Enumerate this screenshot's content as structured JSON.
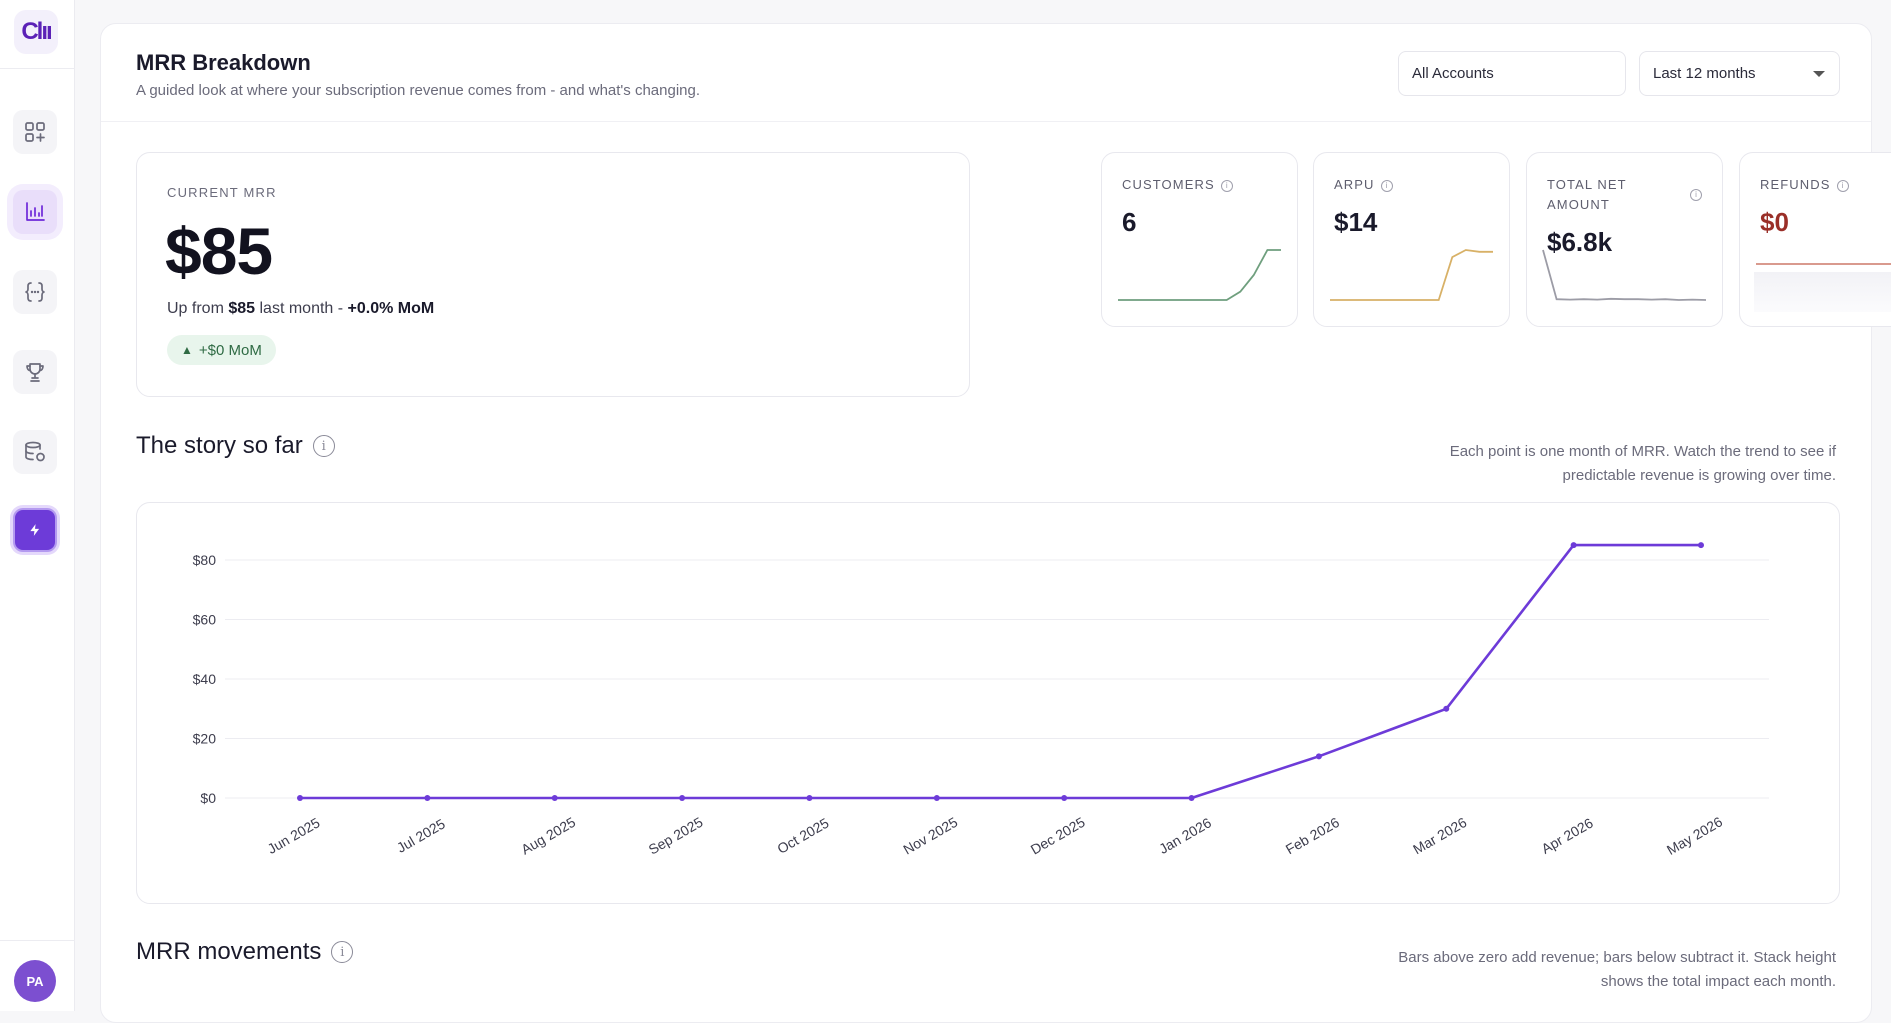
{
  "sidebar": {
    "logo_text": "Clıı",
    "avatar_initials": "PA",
    "items": [
      {
        "icon": "apps-add-icon"
      },
      {
        "icon": "bar-chart-icon"
      },
      {
        "icon": "braces-icon"
      },
      {
        "icon": "trophy-icon"
      },
      {
        "icon": "database-sync-icon"
      },
      {
        "icon": "bolt-icon"
      }
    ]
  },
  "header": {
    "title": "MRR Breakdown",
    "subtitle": "A guided look at where your subscription revenue comes from - and what's changing.",
    "account_filter": "All Accounts",
    "period_filter": "Last 12 months"
  },
  "mrr": {
    "label": "CURRENT MRR",
    "value": "$85",
    "sub_prefix": "Up from ",
    "sub_prev": "$85",
    "sub_middle": " last month - ",
    "sub_change": "+0.0% MoM",
    "badge": "+$0 MoM"
  },
  "kpis": [
    {
      "label": "CUSTOMERS",
      "value": "6",
      "color": "#6f9f7e",
      "trend": [
        0,
        0,
        0,
        0,
        0,
        0,
        0,
        0,
        0,
        1,
        3,
        6,
        6
      ]
    },
    {
      "label": "ARPU",
      "value": "$14",
      "color": "#d8b167",
      "trend": [
        0,
        0,
        0,
        0,
        0,
        0,
        0,
        0,
        0,
        12,
        14,
        13.5,
        13.5
      ]
    },
    {
      "label_line1": "TOTAL NET",
      "label_line2": "AMOUNT",
      "value": "$6.8k",
      "color": "#9c9ca6",
      "trend": [
        6.8,
        0.5,
        0.45,
        0.5,
        0.45,
        0.55,
        0.5,
        0.5,
        0.45,
        0.5,
        0.4,
        0.45,
        0.4
      ]
    },
    {
      "label": "REFUNDS",
      "value": "$0",
      "color": "#d99a8e"
    }
  ],
  "story": {
    "title": "The story so far",
    "note_line1": "Each point is one month of MRR. Watch the trend to see if",
    "note_line2": "predictable revenue is growing over time."
  },
  "movements": {
    "title": "MRR movements",
    "note_line1": "Bars above zero add revenue; bars below subtract it. Stack height",
    "note_line2": "shows the total impact each month."
  },
  "chart_data": {
    "type": "line",
    "x": [
      "Jun 2025",
      "Jul 2025",
      "Aug 2025",
      "Sep 2025",
      "Oct 2025",
      "Nov 2025",
      "Dec 2025",
      "Jan 2026",
      "Feb 2026",
      "Mar 2026",
      "Apr 2026",
      "May 2026"
    ],
    "series": [
      {
        "values": [
          0,
          0,
          0,
          0,
          0,
          0,
          0,
          0,
          14,
          30,
          85,
          85
        ],
        "color": "#6d3bd8"
      }
    ],
    "yticks": [
      "$0",
      "$20",
      "$40",
      "$60",
      "$80"
    ],
    "ylim": [
      0,
      85
    ],
    "grid": true
  }
}
